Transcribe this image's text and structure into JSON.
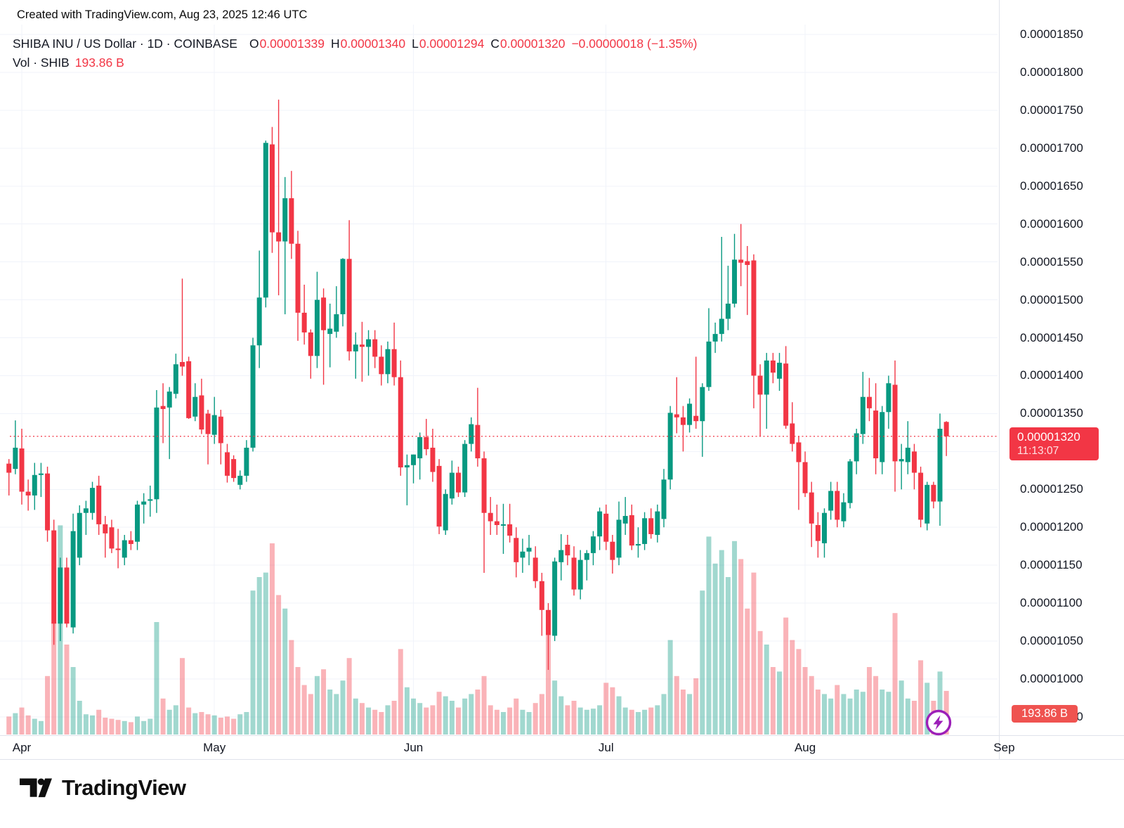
{
  "watermark": "Created with TradingView.com, Aug 23, 2025 12:46 UTC",
  "header": {
    "title": "SHIBA INU / US Dollar · 1D · COINBASE",
    "o_label": "O",
    "o": "0.00001339",
    "h_label": "H",
    "h": "0.00001340",
    "l_label": "L",
    "l": "0.00001294",
    "c_label": "C",
    "c": "0.00001320",
    "change": "−0.00000018 (−1.35%)",
    "vol_label": "Vol · SHIB",
    "vol_value": "193.86 B"
  },
  "price_axis": {
    "labels": [
      "0.00001850",
      "0.00001800",
      "0.00001750",
      "0.00001700",
      "0.00001650",
      "0.00001600",
      "0.00001550",
      "0.00001500",
      "0.00001450",
      "0.00001400",
      "0.00001350",
      "0.00001300",
      "0.00001250",
      "0.00001200",
      "0.00001150",
      "0.00001100",
      "0.00001050",
      "0.00001000",
      "0.00000950"
    ],
    "badge": {
      "price": "0.00001320",
      "countdown": "11:13:07"
    },
    "volume_badge": "193.86 B"
  },
  "time_axis": {
    "months": [
      "Apr",
      "May",
      "Jun",
      "Jul",
      "Aug",
      "Sep"
    ]
  },
  "footer": {
    "brand": "TradingView"
  },
  "colors": {
    "up": "#089981",
    "down": "#f23645",
    "grid": "#f0f3fa",
    "axis_text": "#131722",
    "price_line": "#f23645",
    "price_badge_bg": "#f23645",
    "volume_badge_bg": "#ef5350",
    "flash_purple": "#9c1fb8",
    "logo_ink": "#0f0f0f",
    "volume_opacity": 0.38
  },
  "chart_data": {
    "type": "candlestick",
    "title": "SHIBA INU / US Dollar",
    "interval": "1D",
    "exchange": "COINBASE",
    "volume_unit": "billions SHIB",
    "price_scale": 1e-05,
    "ylim": [
      9.3e-06,
      1.87e-05
    ],
    "grid": true,
    "last_price": 1.32,
    "month_start_indices": [
      2,
      32,
      63,
      93,
      124,
      155
    ],
    "note": "prices stored as price/0.00001; candles are [open,high,low,close,volumeB] daily Mar 30 - Aug 23 2025",
    "candles": [
      [
        1.284,
        1.29,
        1.242,
        1.272,
        80
      ],
      [
        1.277,
        1.341,
        1.27,
        1.305,
        95
      ],
      [
        1.304,
        1.33,
        1.23,
        1.247,
        120
      ],
      [
        1.247,
        1.263,
        1.222,
        1.242,
        85
      ],
      [
        1.242,
        1.285,
        1.223,
        1.269,
        70
      ],
      [
        1.269,
        1.285,
        1.24,
        1.271,
        60
      ],
      [
        1.271,
        1.28,
        1.181,
        1.196,
        260
      ],
      [
        1.196,
        1.21,
        1.045,
        1.073,
        500
      ],
      [
        1.073,
        1.16,
        1.05,
        1.147,
        930
      ],
      [
        1.147,
        1.16,
        1.068,
        1.073,
        400
      ],
      [
        1.068,
        1.218,
        1.06,
        1.195,
        300
      ],
      [
        1.16,
        1.229,
        1.15,
        1.219,
        150
      ],
      [
        1.219,
        1.235,
        1.19,
        1.225,
        90
      ],
      [
        1.219,
        1.26,
        1.21,
        1.252,
        85
      ],
      [
        1.255,
        1.268,
        1.19,
        1.204,
        110
      ],
      [
        1.204,
        1.215,
        1.16,
        1.192,
        75
      ],
      [
        1.2,
        1.21,
        1.166,
        1.172,
        70
      ],
      [
        1.172,
        1.198,
        1.146,
        1.17,
        65
      ],
      [
        1.16,
        1.19,
        1.15,
        1.183,
        60
      ],
      [
        1.183,
        1.195,
        1.17,
        1.178,
        55
      ],
      [
        1.181,
        1.235,
        1.17,
        1.23,
        80
      ],
      [
        1.23,
        1.245,
        1.205,
        1.234,
        60
      ],
      [
        1.235,
        1.255,
        1.214,
        1.237,
        70
      ],
      [
        1.237,
        1.381,
        1.219,
        1.358,
        500
      ],
      [
        1.36,
        1.39,
        1.311,
        1.356,
        160
      ],
      [
        1.358,
        1.385,
        1.29,
        1.379,
        110
      ],
      [
        1.376,
        1.429,
        1.37,
        1.415,
        130
      ],
      [
        1.418,
        1.528,
        1.4,
        1.412,
        340
      ],
      [
        1.419,
        1.425,
        1.343,
        1.344,
        120
      ],
      [
        1.346,
        1.39,
        1.34,
        1.372,
        95
      ],
      [
        1.374,
        1.396,
        1.323,
        1.329,
        100
      ],
      [
        1.35,
        1.355,
        1.283,
        1.323,
        90
      ],
      [
        1.322,
        1.372,
        1.31,
        1.348,
        85
      ],
      [
        1.346,
        1.355,
        1.283,
        1.311,
        75
      ],
      [
        1.299,
        1.31,
        1.259,
        1.268,
        80
      ],
      [
        1.29,
        1.295,
        1.26,
        1.265,
        70
      ],
      [
        1.256,
        1.275,
        1.25,
        1.268,
        90
      ],
      [
        1.268,
        1.315,
        1.26,
        1.305,
        100
      ],
      [
        1.305,
        1.45,
        1.3,
        1.44,
        640
      ],
      [
        1.44,
        1.565,
        1.41,
        1.503,
        700
      ],
      [
        1.503,
        1.71,
        1.49,
        1.707,
        720
      ],
      [
        1.705,
        1.728,
        1.562,
        1.589,
        850
      ],
      [
        1.589,
        1.764,
        1.506,
        1.577,
        620
      ],
      [
        1.577,
        1.662,
        1.481,
        1.634,
        560
      ],
      [
        1.634,
        1.67,
        1.554,
        1.574,
        420
      ],
      [
        1.574,
        1.591,
        1.446,
        1.483,
        300
      ],
      [
        1.483,
        1.52,
        1.441,
        1.457,
        220
      ],
      [
        1.457,
        1.461,
        1.396,
        1.426,
        180
      ],
      [
        1.426,
        1.537,
        1.41,
        1.5,
        260
      ],
      [
        1.503,
        1.515,
        1.388,
        1.46,
        290
      ],
      [
        1.455,
        1.495,
        1.411,
        1.462,
        200
      ],
      [
        1.458,
        1.518,
        1.45,
        1.481,
        180
      ],
      [
        1.481,
        1.555,
        1.465,
        1.554,
        240
      ],
      [
        1.554,
        1.605,
        1.42,
        1.432,
        340
      ],
      [
        1.432,
        1.457,
        1.396,
        1.441,
        160
      ],
      [
        1.441,
        1.471,
        1.392,
        1.438,
        140
      ],
      [
        1.438,
        1.46,
        1.4,
        1.448,
        120
      ],
      [
        1.448,
        1.46,
        1.41,
        1.425,
        110
      ],
      [
        1.425,
        1.44,
        1.387,
        1.402,
        100
      ],
      [
        1.402,
        1.445,
        1.39,
        1.435,
        130
      ],
      [
        1.435,
        1.47,
        1.387,
        1.398,
        150
      ],
      [
        1.398,
        1.42,
        1.268,
        1.279,
        380
      ],
      [
        1.279,
        1.296,
        1.229,
        1.282,
        210
      ],
      [
        1.282,
        1.296,
        1.258,
        1.296,
        160
      ],
      [
        1.291,
        1.325,
        1.263,
        1.319,
        140
      ],
      [
        1.319,
        1.343,
        1.295,
        1.303,
        120
      ],
      [
        1.305,
        1.33,
        1.26,
        1.273,
        130
      ],
      [
        1.281,
        1.29,
        1.191,
        1.201,
        190
      ],
      [
        1.196,
        1.25,
        1.19,
        1.244,
        170
      ],
      [
        1.238,
        1.288,
        1.23,
        1.272,
        150
      ],
      [
        1.272,
        1.28,
        1.24,
        1.246,
        120
      ],
      [
        1.246,
        1.315,
        1.24,
        1.31,
        160
      ],
      [
        1.31,
        1.345,
        1.3,
        1.336,
        180
      ],
      [
        1.335,
        1.384,
        1.28,
        1.291,
        200
      ],
      [
        1.291,
        1.3,
        1.14,
        1.219,
        260
      ],
      [
        1.219,
        1.24,
        1.19,
        1.208,
        130
      ],
      [
        1.208,
        1.23,
        1.19,
        1.203,
        110
      ],
      [
        1.203,
        1.231,
        1.165,
        1.204,
        100
      ],
      [
        1.204,
        1.231,
        1.18,
        1.189,
        120
      ],
      [
        1.186,
        1.2,
        1.134,
        1.154,
        160
      ],
      [
        1.16,
        1.185,
        1.14,
        1.168,
        110
      ],
      [
        1.168,
        1.19,
        1.15,
        1.173,
        100
      ],
      [
        1.16,
        1.175,
        1.12,
        1.129,
        140
      ],
      [
        1.129,
        1.14,
        1.057,
        1.091,
        180
      ],
      [
        1.091,
        1.1,
        1.012,
        1.058,
        460
      ],
      [
        1.057,
        1.16,
        1.05,
        1.155,
        240
      ],
      [
        1.154,
        1.191,
        1.13,
        1.17,
        170
      ],
      [
        1.177,
        1.19,
        1.15,
        1.163,
        130
      ],
      [
        1.16,
        1.175,
        1.11,
        1.118,
        150
      ],
      [
        1.118,
        1.17,
        1.105,
        1.157,
        120
      ],
      [
        1.157,
        1.17,
        1.13,
        1.166,
        110
      ],
      [
        1.166,
        1.195,
        1.15,
        1.188,
        115
      ],
      [
        1.188,
        1.226,
        1.17,
        1.221,
        130
      ],
      [
        1.218,
        1.23,
        1.17,
        1.181,
        230
      ],
      [
        1.181,
        1.19,
        1.139,
        1.157,
        210
      ],
      [
        1.16,
        1.234,
        1.15,
        1.21,
        170
      ],
      [
        1.205,
        1.24,
        1.19,
        1.215,
        120
      ],
      [
        1.216,
        1.23,
        1.17,
        1.176,
        110
      ],
      [
        1.176,
        1.2,
        1.16,
        1.178,
        100
      ],
      [
        1.178,
        1.22,
        1.17,
        1.212,
        110
      ],
      [
        1.212,
        1.225,
        1.185,
        1.191,
        120
      ],
      [
        1.19,
        1.23,
        1.18,
        1.221,
        130
      ],
      [
        1.211,
        1.277,
        1.2,
        1.263,
        180
      ],
      [
        1.263,
        1.36,
        1.25,
        1.351,
        420
      ],
      [
        1.349,
        1.398,
        1.324,
        1.345,
        260
      ],
      [
        1.345,
        1.36,
        1.3,
        1.335,
        200
      ],
      [
        1.335,
        1.37,
        1.325,
        1.363,
        180
      ],
      [
        1.347,
        1.425,
        1.33,
        1.34,
        250
      ],
      [
        1.34,
        1.39,
        1.293,
        1.385,
        640
      ],
      [
        1.385,
        1.489,
        1.38,
        1.445,
        880
      ],
      [
        1.445,
        1.47,
        1.43,
        1.455,
        760
      ],
      [
        1.455,
        1.583,
        1.445,
        1.475,
        820
      ],
      [
        1.475,
        1.545,
        1.46,
        1.495,
        700
      ],
      [
        1.495,
        1.587,
        1.49,
        1.553,
        860
      ],
      [
        1.553,
        1.6,
        1.518,
        1.549,
        780
      ],
      [
        1.551,
        1.571,
        1.48,
        1.546,
        560
      ],
      [
        1.552,
        1.56,
        1.357,
        1.4,
        720
      ],
      [
        1.4,
        1.415,
        1.32,
        1.375,
        460
      ],
      [
        1.375,
        1.43,
        1.33,
        1.42,
        400
      ],
      [
        1.42,
        1.43,
        1.39,
        1.404,
        300
      ],
      [
        1.396,
        1.43,
        1.38,
        1.417,
        280
      ],
      [
        1.416,
        1.439,
        1.33,
        1.334,
        520
      ],
      [
        1.337,
        1.365,
        1.3,
        1.31,
        420
      ],
      [
        1.312,
        1.32,
        1.223,
        1.286,
        380
      ],
      [
        1.286,
        1.3,
        1.24,
        1.245,
        300
      ],
      [
        1.246,
        1.26,
        1.174,
        1.205,
        260
      ],
      [
        1.203,
        1.22,
        1.16,
        1.182,
        200
      ],
      [
        1.179,
        1.225,
        1.16,
        1.219,
        180
      ],
      [
        1.222,
        1.26,
        1.21,
        1.248,
        160
      ],
      [
        1.248,
        1.26,
        1.2,
        1.21,
        220
      ],
      [
        1.208,
        1.245,
        1.2,
        1.233,
        180
      ],
      [
        1.232,
        1.29,
        1.225,
        1.287,
        160
      ],
      [
        1.287,
        1.33,
        1.27,
        1.324,
        200
      ],
      [
        1.323,
        1.405,
        1.31,
        1.372,
        190
      ],
      [
        1.372,
        1.397,
        1.34,
        1.357,
        300
      ],
      [
        1.354,
        1.39,
        1.27,
        1.291,
        260
      ],
      [
        1.286,
        1.36,
        1.27,
        1.352,
        200
      ],
      [
        1.352,
        1.4,
        1.33,
        1.39,
        190
      ],
      [
        1.388,
        1.42,
        1.247,
        1.287,
        540
      ],
      [
        1.287,
        1.31,
        1.25,
        1.29,
        240
      ],
      [
        1.286,
        1.34,
        1.27,
        1.305,
        160
      ],
      [
        1.3,
        1.31,
        1.25,
        1.272,
        150
      ],
      [
        1.272,
        1.28,
        1.2,
        1.21,
        330
      ],
      [
        1.205,
        1.26,
        1.196,
        1.256,
        230
      ],
      [
        1.256,
        1.26,
        1.225,
        1.234,
        150
      ],
      [
        1.234,
        1.35,
        1.202,
        1.33,
        280
      ],
      [
        1.339,
        1.34,
        1.294,
        1.32,
        194
      ]
    ]
  }
}
